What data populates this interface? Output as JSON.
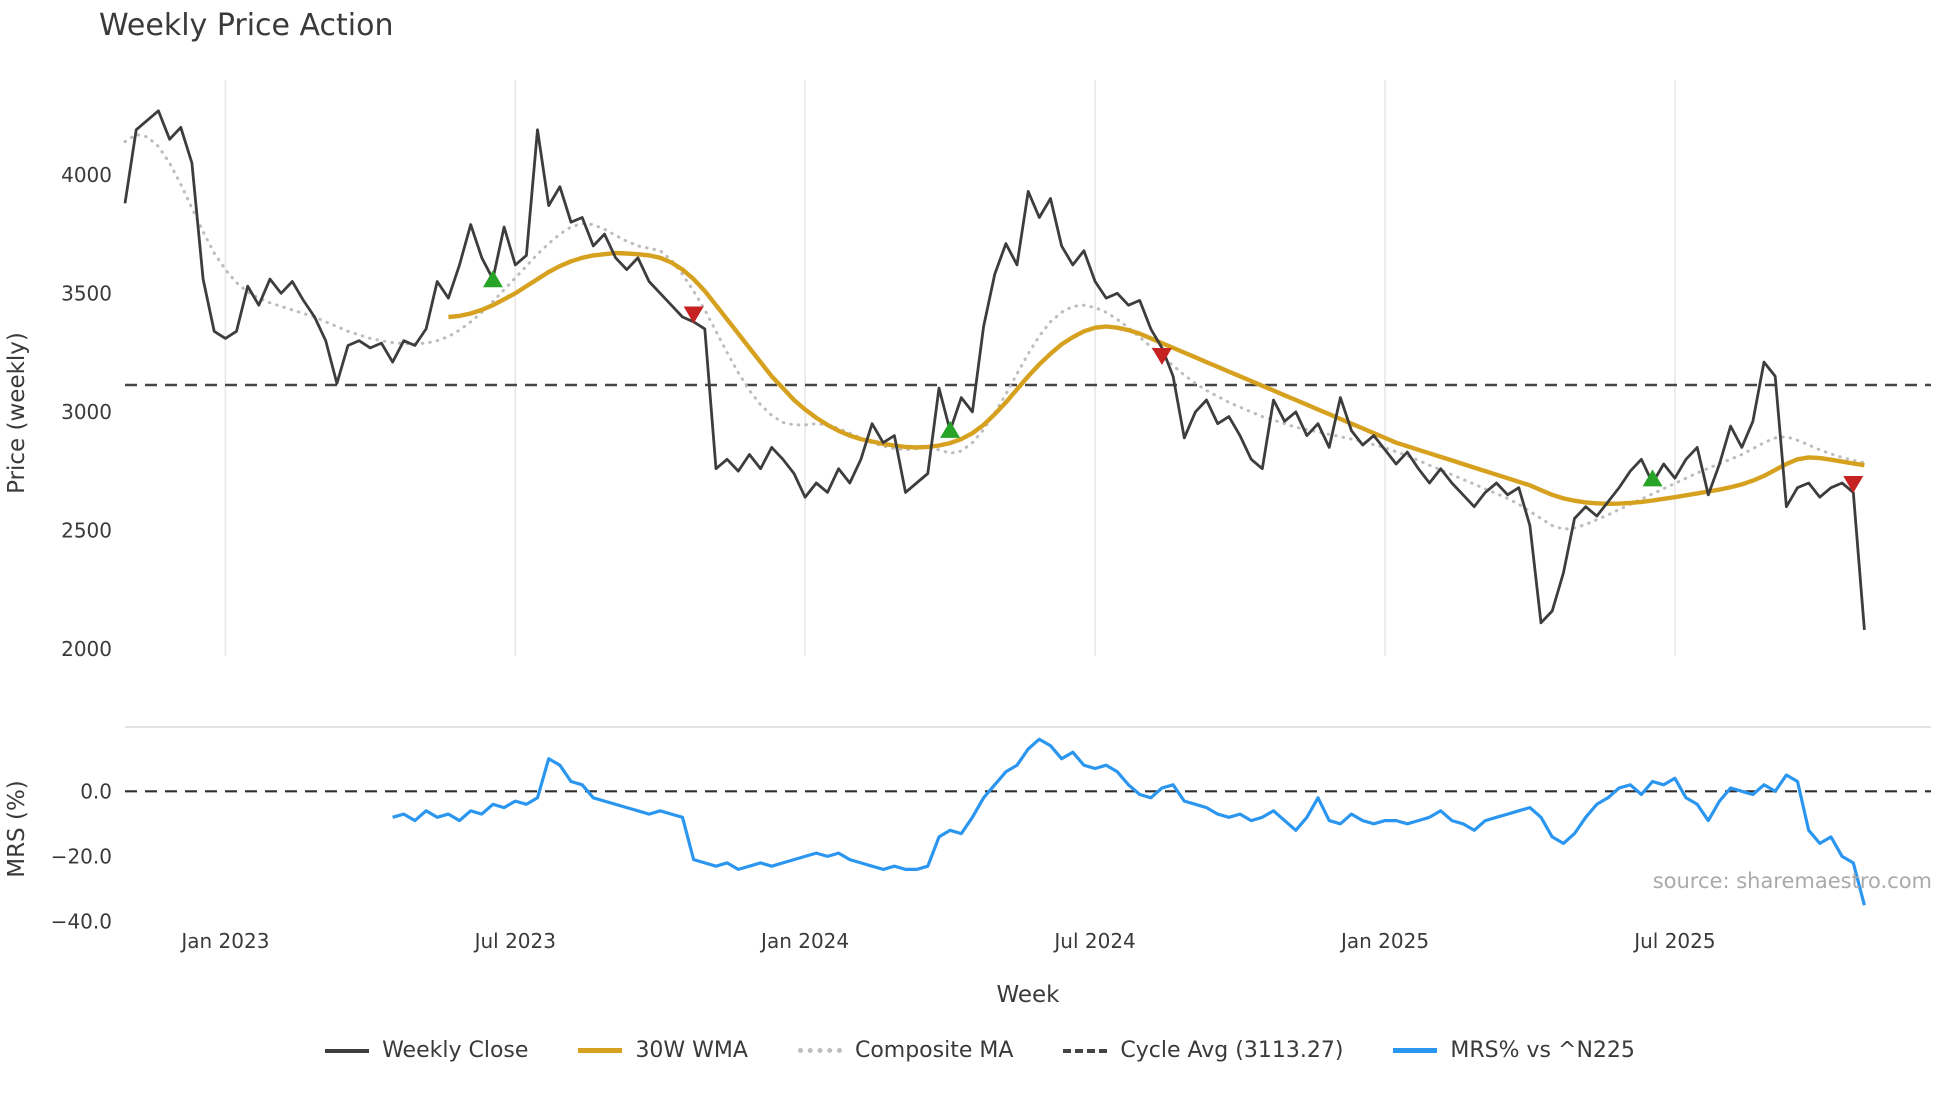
{
  "title": "Weekly Price Action",
  "source": "source: sharemaestro.com",
  "legend": [
    {
      "label": "Weekly Close",
      "color": "#3d3d3d"
    },
    {
      "label": "30W WMA",
      "color": "#d6a11f"
    },
    {
      "label": "Composite MA",
      "color": "#bdbdbd"
    },
    {
      "label": "Cycle Avg (3113.27)",
      "color": "#454545"
    },
    {
      "label": "MRS% vs ^N225",
      "color": "#2b96f0"
    }
  ],
  "chart_data": {
    "type": "line",
    "title": "Weekly Price Action",
    "xlabel": "Week",
    "ylabel_price": "Price (weekly)",
    "ylabel_mrs": "MRS (%)",
    "cycle_avg": 3113.27,
    "price_ylim": [
      1970,
      4400
    ],
    "mrs_ylim": [
      -42,
      17.6
    ],
    "grid": "vertical-only",
    "legend_position": "bottom-center",
    "colors": {
      "grid": "#e8e8e8",
      "cycle": "#454545",
      "buy": "#27a327",
      "sell": "#c62222"
    },
    "x_ticks": [
      {
        "pos": 9,
        "label": "Jan 2023"
      },
      {
        "pos": 35,
        "label": "Jul 2023"
      },
      {
        "pos": 61,
        "label": "Jan 2024"
      },
      {
        "pos": 87,
        "label": "Jul 2024"
      },
      {
        "pos": 113,
        "label": "Jan 2025"
      },
      {
        "pos": 139,
        "label": "Jul 2025"
      }
    ],
    "price_ticks": [
      {
        "value": 4000,
        "label": "4000"
      },
      {
        "value": 3500,
        "label": "3500"
      },
      {
        "value": 3000,
        "label": "3000"
      },
      {
        "value": 2500,
        "label": "2500"
      },
      {
        "value": 2000,
        "label": "2000"
      }
    ],
    "mrs_ticks": [
      {
        "value": 0,
        "label": "0.0"
      },
      {
        "value": -20,
        "label": "−20.0"
      },
      {
        "value": -40,
        "label": "−40.0"
      }
    ],
    "series": [
      {
        "id": "composite",
        "name": "Composite MA",
        "panel": "price",
        "color": "#bdbdbd",
        "width": 3,
        "dash": "0.6 7",
        "start_index": 0,
        "values": [
          4140,
          4170,
          4160,
          4120,
          4050,
          3960,
          3860,
          3760,
          3670,
          3600,
          3545,
          3505,
          3480,
          3460,
          3445,
          3430,
          3415,
          3400,
          3380,
          3360,
          3340,
          3325,
          3310,
          3300,
          3292,
          3288,
          3287,
          3290,
          3300,
          3318,
          3345,
          3380,
          3420,
          3465,
          3515,
          3565,
          3615,
          3665,
          3710,
          3750,
          3780,
          3795,
          3790,
          3770,
          3745,
          3720,
          3700,
          3690,
          3680,
          3640,
          3580,
          3510,
          3430,
          3340,
          3250,
          3165,
          3090,
          3030,
          2985,
          2955,
          2945,
          2945,
          2950,
          2945,
          2930,
          2910,
          2890,
          2870,
          2855,
          2845,
          2840,
          2845,
          2850,
          2840,
          2825,
          2835,
          2870,
          2925,
          2995,
          3075,
          3160,
          3245,
          3320,
          3380,
          3420,
          3445,
          3450,
          3440,
          3420,
          3390,
          3355,
          3315,
          3275,
          3235,
          3195,
          3155,
          3120,
          3090,
          3065,
          3040,
          3020,
          3000,
          2980,
          2965,
          2950,
          2935,
          2925,
          2915,
          2905,
          2895,
          2885,
          2875,
          2862,
          2848,
          2832,
          2815,
          2795,
          2775,
          2755,
          2735,
          2715,
          2695,
          2675,
          2655,
          2635,
          2610,
          2580,
          2550,
          2520,
          2505,
          2510,
          2525,
          2545,
          2565,
          2588,
          2610,
          2632,
          2654,
          2676,
          2698,
          2720,
          2742,
          2762,
          2782,
          2800,
          2820,
          2845,
          2870,
          2890,
          2895,
          2880,
          2860,
          2840,
          2822,
          2808,
          2795,
          2785
        ]
      },
      {
        "id": "wma",
        "name": "30W WMA",
        "panel": "price",
        "color": "#d6a11f",
        "width": 4.4,
        "start_index": 29,
        "values": [
          3400,
          3405,
          3415,
          3430,
          3450,
          3475,
          3500,
          3530,
          3560,
          3590,
          3615,
          3635,
          3650,
          3660,
          3665,
          3670,
          3668,
          3665,
          3660,
          3650,
          3630,
          3600,
          3560,
          3510,
          3450,
          3390,
          3330,
          3270,
          3210,
          3150,
          3100,
          3050,
          3010,
          2975,
          2945,
          2920,
          2900,
          2885,
          2875,
          2865,
          2858,
          2852,
          2850,
          2852,
          2858,
          2868,
          2885,
          2910,
          2945,
          2990,
          3040,
          3095,
          3150,
          3200,
          3245,
          3285,
          3315,
          3340,
          3355,
          3360,
          3355,
          3345,
          3330,
          3310,
          3290,
          3270,
          3250,
          3230,
          3210,
          3190,
          3170,
          3150,
          3130,
          3110,
          3090,
          3070,
          3050,
          3030,
          3010,
          2990,
          2970,
          2950,
          2930,
          2910,
          2890,
          2870,
          2855,
          2840,
          2825,
          2810,
          2795,
          2780,
          2765,
          2750,
          2735,
          2720,
          2705,
          2690,
          2670,
          2650,
          2635,
          2625,
          2618,
          2614,
          2612,
          2613,
          2616,
          2620,
          2626,
          2633,
          2640,
          2648,
          2656,
          2664,
          2672,
          2682,
          2694,
          2710,
          2730,
          2755,
          2780,
          2800,
          2808,
          2805,
          2798,
          2790,
          2782,
          2775
        ]
      },
      {
        "id": "weekly-close",
        "name": "Weekly Close",
        "panel": "price",
        "color": "#3d3d3d",
        "width": 2.8,
        "start_index": 0,
        "values": [
          3880,
          4190,
          4230,
          4270,
          4150,
          4200,
          4050,
          3560,
          3340,
          3310,
          3340,
          3530,
          3450,
          3560,
          3500,
          3550,
          3470,
          3400,
          3300,
          3120,
          3280,
          3300,
          3270,
          3290,
          3210,
          3300,
          3280,
          3350,
          3550,
          3480,
          3620,
          3790,
          3650,
          3560,
          3780,
          3620,
          3660,
          4190,
          3870,
          3950,
          3800,
          3820,
          3700,
          3750,
          3650,
          3600,
          3650,
          3550,
          3500,
          3450,
          3400,
          3380,
          3350,
          2760,
          2800,
          2750,
          2820,
          2760,
          2850,
          2800,
          2740,
          2640,
          2700,
          2660,
          2760,
          2700,
          2800,
          2950,
          2870,
          2900,
          2660,
          2700,
          2740,
          3100,
          2920,
          3060,
          3000,
          3360,
          3580,
          3710,
          3620,
          3930,
          3820,
          3900,
          3700,
          3620,
          3680,
          3550,
          3480,
          3500,
          3450,
          3470,
          3350,
          3270,
          3150,
          2890,
          3000,
          3050,
          2950,
          2980,
          2900,
          2800,
          2760,
          3050,
          2960,
          3000,
          2900,
          2950,
          2850,
          3060,
          2920,
          2860,
          2900,
          2840,
          2780,
          2830,
          2760,
          2700,
          2760,
          2700,
          2650,
          2600,
          2660,
          2700,
          2650,
          2680,
          2520,
          2110,
          2160,
          2320,
          2550,
          2600,
          2560,
          2620,
          2680,
          2750,
          2800,
          2700,
          2780,
          2720,
          2800,
          2850,
          2650,
          2780,
          2940,
          2850,
          2960,
          3210,
          3150,
          2600,
          2680,
          2700,
          2640,
          2680,
          2700,
          2660,
          2080
        ]
      },
      {
        "id": "mrs",
        "name": "MRS% vs ^N225",
        "panel": "mrs",
        "color": "#2b96f0",
        "width": 3.2,
        "start_index": 24,
        "values": [
          -8,
          -7,
          -9,
          -6,
          -8,
          -7,
          -9,
          -6,
          -7,
          -4,
          -5,
          -3,
          -4,
          -2,
          10,
          8,
          3,
          2,
          -2,
          -3,
          -4,
          -5,
          -6,
          -7,
          -6,
          -7,
          -8,
          -21,
          -22,
          -23,
          -22,
          -24,
          -23,
          -22,
          -23,
          -22,
          -21,
          -20,
          -19,
          -20,
          -19,
          -21,
          -22,
          -23,
          -24,
          -23,
          -24,
          -24,
          -23,
          -14,
          -12,
          -13,
          -8,
          -2,
          2,
          6,
          8,
          13,
          16,
          14,
          10,
          12,
          8,
          7,
          8,
          6,
          2,
          -1,
          -2,
          1,
          2,
          -3,
          -4,
          -5,
          -7,
          -8,
          -7,
          -9,
          -8,
          -6,
          -9,
          -12,
          -8,
          -2,
          -9,
          -10,
          -7,
          -9,
          -10,
          -9,
          -9,
          -10,
          -9,
          -8,
          -6,
          -9,
          -10,
          -12,
          -9,
          -8,
          -7,
          -6,
          -5,
          -8,
          -14,
          -16,
          -13,
          -8,
          -4,
          -2,
          1,
          2,
          -1,
          3,
          2,
          4,
          -2,
          -4,
          -9,
          -3,
          1,
          0,
          -1,
          2,
          0,
          5,
          3,
          -12,
          -16,
          -14,
          -20,
          -22,
          -35
        ]
      }
    ],
    "signals": {
      "buy": [
        {
          "week_index": 33,
          "price": 3555
        },
        {
          "week_index": 74,
          "price": 2920
        },
        {
          "week_index": 137,
          "price": 2715
        }
      ],
      "sell": [
        {
          "week_index": 51,
          "price": 3415
        },
        {
          "week_index": 93,
          "price": 3240
        },
        {
          "week_index": 155,
          "price": 2700
        }
      ]
    }
  }
}
